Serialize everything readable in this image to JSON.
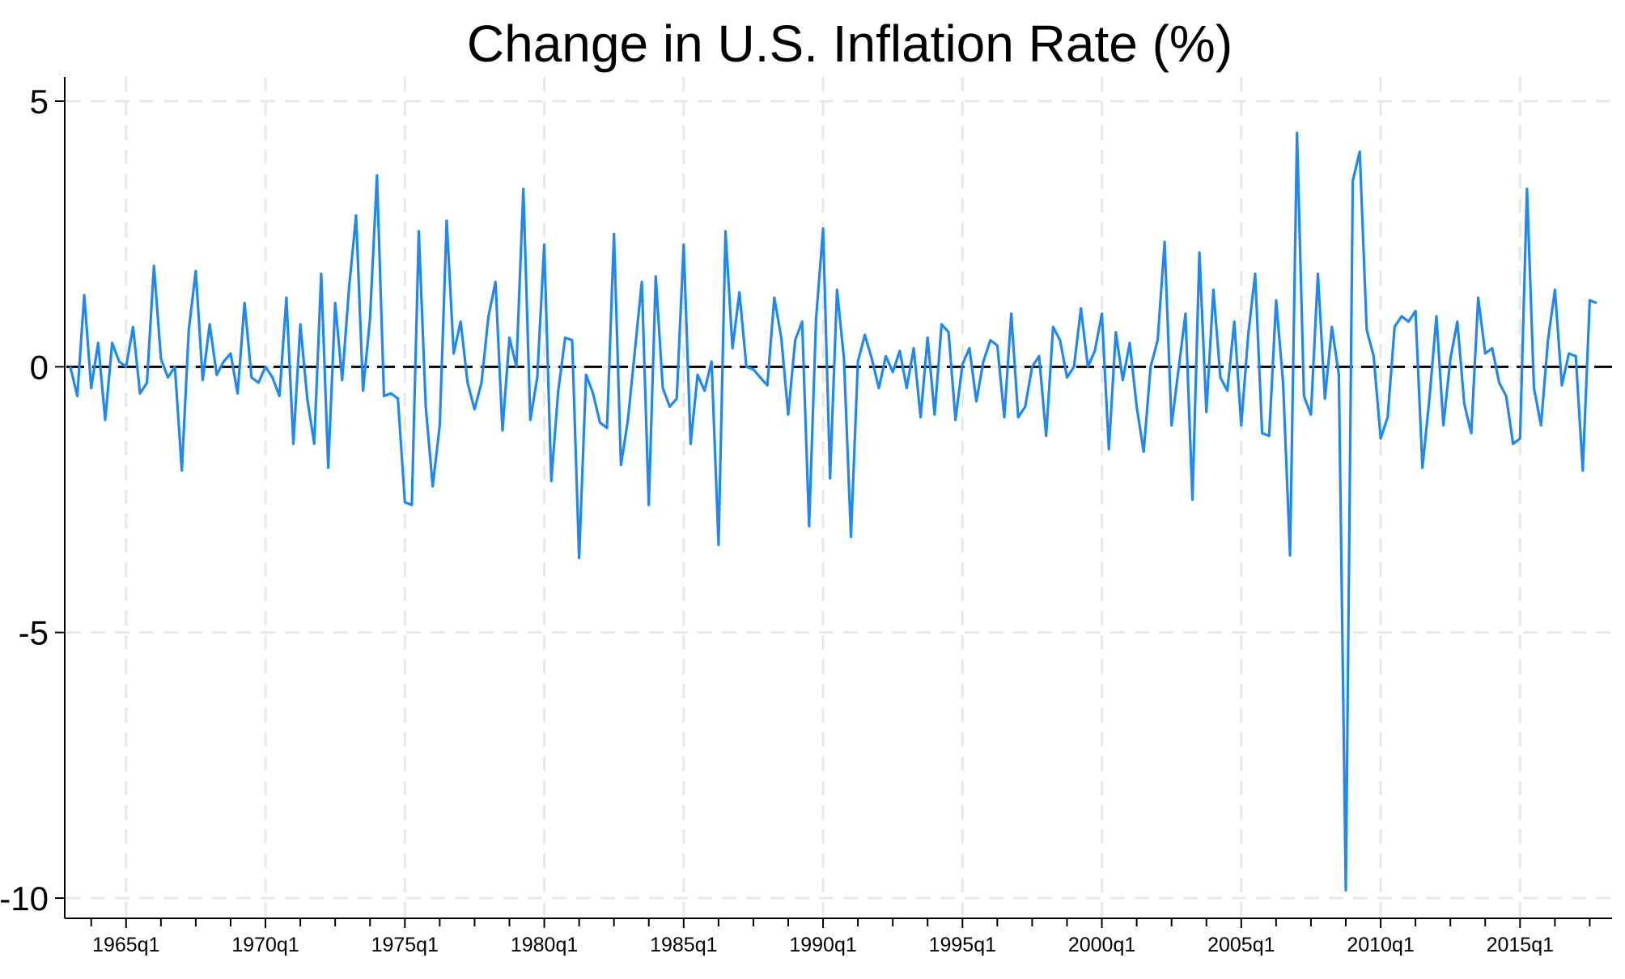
{
  "chart_data": {
    "type": "line",
    "title": "Change in U.S. Inflation Rate (%)",
    "xlabel": "",
    "ylabel": "",
    "ylim": [
      -10,
      5
    ],
    "xlim": [
      1962.8,
      2018.3
    ],
    "y_ticks": [
      5,
      0,
      -5,
      -10
    ],
    "y_tick_labels": [
      "5",
      "0",
      "-5",
      "-10"
    ],
    "x_ticks": [
      1965,
      1970,
      1975,
      1980,
      1985,
      1990,
      1995,
      2000,
      2005,
      2010,
      2015
    ],
    "x_tick_labels": [
      "1965q1",
      "1970q1",
      "1975q1",
      "1980q1",
      "1985q1",
      "1990q1",
      "1995q1",
      "2000q1",
      "2005q1",
      "2010q1",
      "2015q1"
    ],
    "x_minor_ticks": [
      1963.75,
      1966.25,
      1967.5,
      1968.75,
      1971.25,
      1972.5,
      1973.75,
      1976.25,
      1977.5,
      1978.75,
      1981.25,
      1982.5,
      1983.75,
      1986.25,
      1987.5,
      1988.75,
      1991.25,
      1992.5,
      1993.75,
      1996.25,
      1997.5,
      1998.75,
      2001.25,
      2002.5,
      2003.75,
      2006.25,
      2007.5,
      2008.75,
      2011.25,
      2012.5,
      2013.75,
      2016.25,
      2017.5
    ],
    "reference_line": {
      "y": 0,
      "style": "dashed",
      "color": "#000000"
    },
    "grid": true,
    "series": [
      {
        "name": "Change in U.S. Inflation Rate",
        "color": "#1E88F5",
        "start": 1963.0,
        "step": 0.25,
        "values": [
          0.0,
          -0.55,
          1.35,
          -0.4,
          0.45,
          -1.0,
          0.45,
          0.1,
          0.0,
          0.75,
          -0.5,
          -0.3,
          1.9,
          0.15,
          -0.2,
          0.0,
          -1.95,
          0.7,
          1.8,
          -0.25,
          0.8,
          -0.15,
          0.1,
          0.25,
          -0.5,
          1.2,
          -0.2,
          -0.3,
          0.0,
          -0.2,
          -0.55,
          1.3,
          -1.45,
          0.8,
          -0.6,
          -1.45,
          1.75,
          -1.9,
          1.2,
          -0.25,
          1.5,
          2.85,
          -0.45,
          0.9,
          3.6,
          -0.55,
          -0.5,
          -0.6,
          -2.55,
          -2.6,
          2.55,
          -0.75,
          -2.25,
          -1.1,
          2.75,
          0.25,
          0.85,
          -0.3,
          -0.8,
          -0.3,
          0.95,
          1.6,
          -1.2,
          0.55,
          0.0,
          3.35,
          -1.0,
          -0.2,
          2.3,
          -2.15,
          -0.45,
          0.55,
          0.5,
          -3.6,
          -0.15,
          -0.5,
          -1.05,
          -1.15,
          2.5,
          -1.85,
          -1.0,
          0.3,
          1.6,
          -2.6,
          1.7,
          -0.4,
          -0.75,
          -0.6,
          2.3,
          -1.45,
          -0.15,
          -0.45,
          0.1,
          -3.35,
          2.55,
          0.35,
          1.4,
          0.0,
          -0.05,
          -0.2,
          -0.35,
          1.3,
          0.55,
          -0.9,
          0.5,
          0.85,
          -3.0,
          0.9,
          2.6,
          -2.1,
          1.45,
          0.15,
          -3.2,
          0.1,
          0.6,
          0.15,
          -0.4,
          0.2,
          -0.1,
          0.3,
          -0.4,
          0.35,
          -0.95,
          0.55,
          -0.9,
          0.8,
          0.65,
          -1.0,
          0.05,
          0.35,
          -0.65,
          0.1,
          0.5,
          0.4,
          -0.95,
          1.0,
          -0.95,
          -0.75,
          0.0,
          0.2,
          -1.3,
          0.75,
          0.5,
          -0.2,
          0.0,
          1.1,
          0.0,
          0.3,
          1.0,
          -1.55,
          0.65,
          -0.25,
          0.45,
          -0.75,
          -1.6,
          0.0,
          0.5,
          2.35,
          -1.1,
          -0.05,
          1.0,
          -2.5,
          2.15,
          -0.85,
          1.45,
          -0.2,
          -0.45,
          0.85,
          -1.1,
          0.6,
          1.75,
          -1.25,
          -1.3,
          1.25,
          -0.3,
          -3.55,
          4.4,
          -0.55,
          -0.9,
          1.75,
          -0.6,
          0.75,
          -0.15,
          -9.85,
          3.5,
          4.05,
          0.7,
          0.2,
          -1.35,
          -0.95,
          0.75,
          0.95,
          0.85,
          1.05,
          -1.9,
          -0.6,
          0.95,
          -1.1,
          0.15,
          0.85,
          -0.7,
          -1.25,
          1.3,
          0.25,
          0.35,
          -0.3,
          -0.55,
          -1.45,
          -1.35,
          3.35,
          -0.4,
          -1.1,
          0.5,
          1.45,
          -0.35,
          0.25,
          0.2,
          -1.95,
          1.25,
          1.2
        ]
      }
    ]
  }
}
